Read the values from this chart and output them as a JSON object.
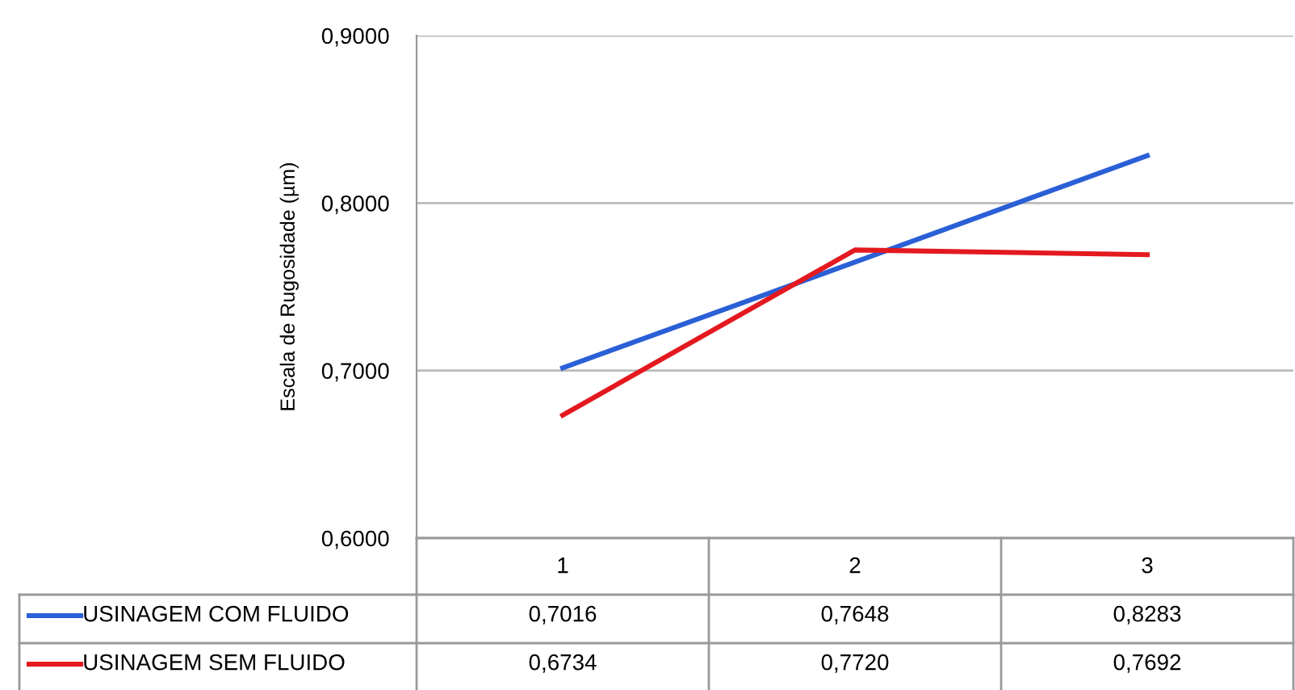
{
  "chart_data": {
    "type": "line",
    "ylabel": "Escala de Rugosidade (µm)",
    "categories": [
      "1",
      "2",
      "3"
    ],
    "series": [
      {
        "name": "USINAGEM COM FLUIDO",
        "color": "#2a5fd6",
        "values": [
          0.7016,
          0.7648,
          0.8283
        ],
        "value_labels": [
          "0,7016",
          "0,7648",
          "0,8283"
        ]
      },
      {
        "name": "USINAGEM SEM FLUIDO",
        "color": "#e3191f",
        "values": [
          0.6734,
          0.772,
          0.7692
        ],
        "value_labels": [
          "0,6734",
          "0,7720",
          "0,7692"
        ]
      }
    ],
    "ylim": [
      0.6,
      0.9
    ],
    "yticks": [
      {
        "value": 0.6,
        "label": "0,6000"
      },
      {
        "value": 0.7,
        "label": "0,7000"
      },
      {
        "value": 0.8,
        "label": "0,8000"
      },
      {
        "value": 0.9,
        "label": "0,9000"
      }
    ],
    "grid": "y",
    "legend": "bottom"
  }
}
